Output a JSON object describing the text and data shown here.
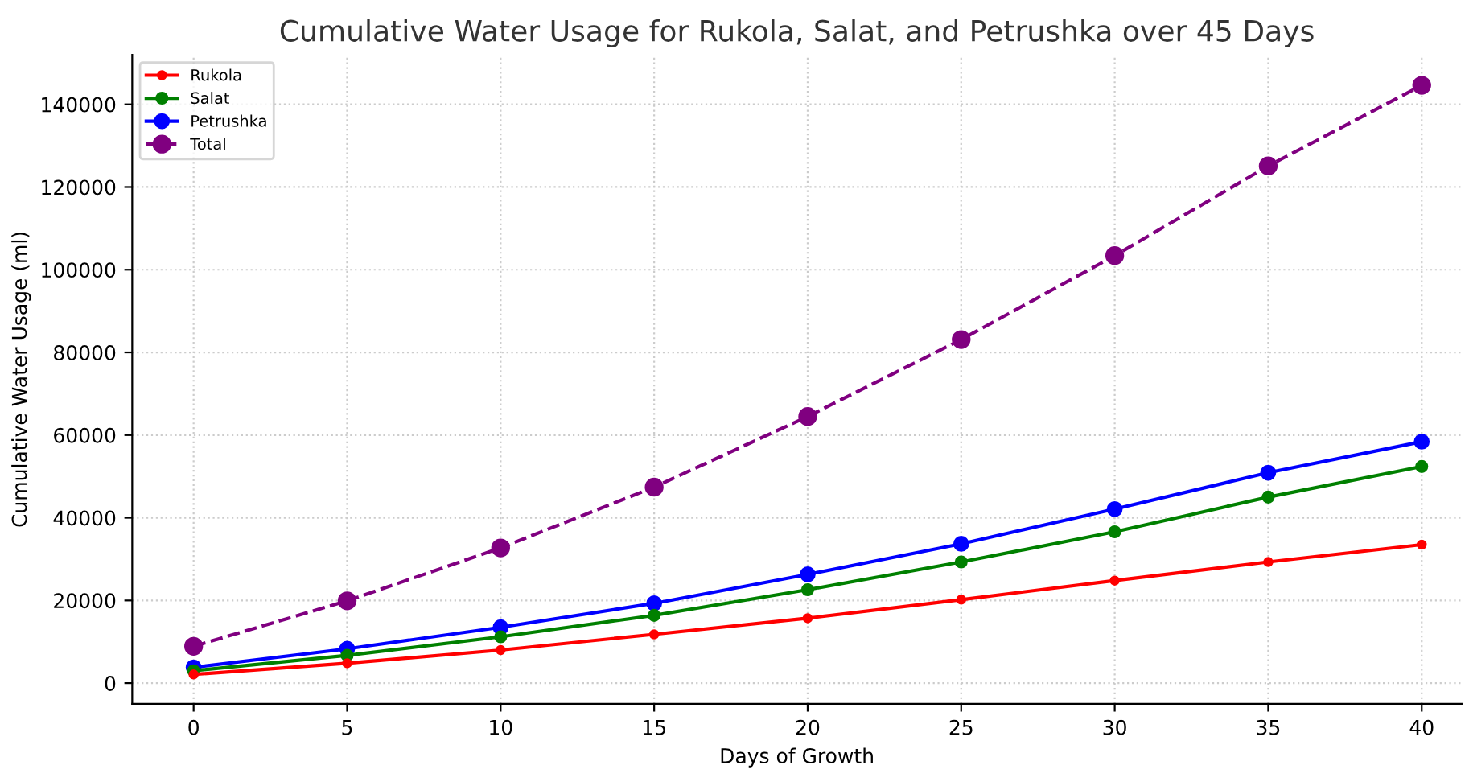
{
  "chart_data": {
    "type": "line",
    "title": "Cumulative Water Usage for Rukola, Salat, and Petrushka over 45 Days",
    "xlabel": "Days of Growth",
    "ylabel": "Cumulative Water Usage (ml)",
    "x": [
      0,
      5,
      10,
      15,
      20,
      25,
      30,
      35,
      40
    ],
    "series": [
      {
        "name": "Rukola",
        "color": "#ff0000",
        "values": [
          2100,
          4800,
          8000,
          11800,
          15700,
          20200,
          24800,
          29300,
          33500
        ]
      },
      {
        "name": "Salat",
        "color": "#008000",
        "values": [
          3000,
          6700,
          11200,
          16400,
          22600,
          29300,
          36600,
          45000,
          52400
        ]
      },
      {
        "name": "Petrushka",
        "color": "#0000ff",
        "values": [
          3800,
          8300,
          13500,
          19300,
          26300,
          33700,
          42100,
          50900,
          58400
        ]
      },
      {
        "name": "Total",
        "color": "#800080",
        "line_style": "dashed",
        "values": [
          8900,
          19900,
          32700,
          47400,
          64500,
          83100,
          103400,
          125100,
          144600
        ]
      }
    ],
    "xlim": [
      -2,
      41.3
    ],
    "ylim": [
      -5000,
      152000
    ],
    "xticks": [
      0,
      5,
      10,
      15,
      20,
      25,
      30,
      35,
      40
    ],
    "yticks": [
      0,
      20000,
      40000,
      60000,
      80000,
      100000,
      120000,
      140000
    ],
    "grid": true,
    "legend": "top left",
    "marker": "circle",
    "line_style": "solid"
  }
}
